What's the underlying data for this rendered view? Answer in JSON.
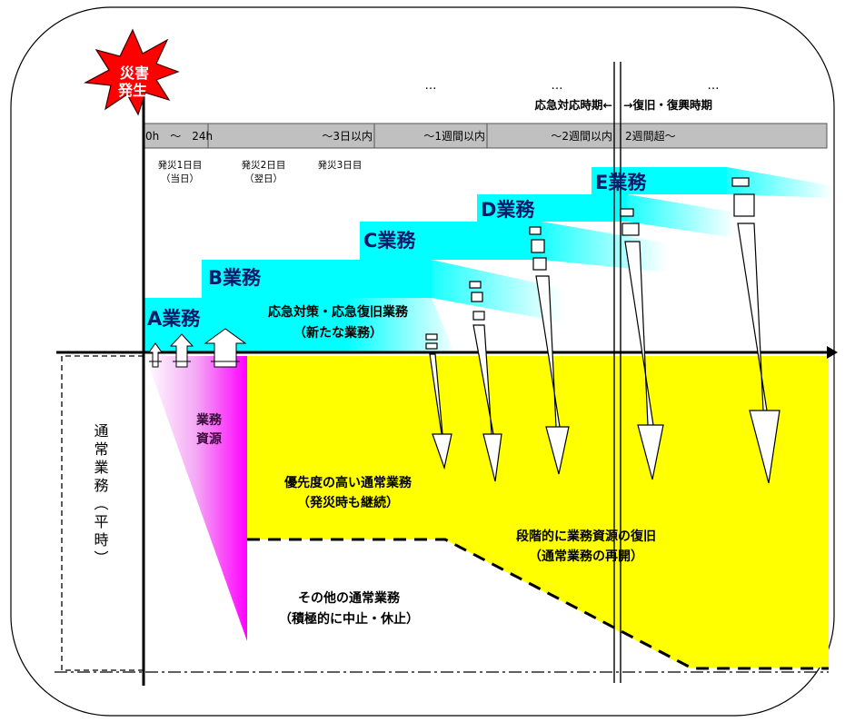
{
  "burst_label_lines": [
    "災害",
    "発生"
  ],
  "ellipsis": "…",
  "phase_labels": {
    "response": "応急対応時期←",
    "recovery": "→復旧・復興時期"
  },
  "timeline": [
    "0h　～　24h",
    "～3日以内",
    "～1週間以内",
    "～2週間以内",
    "2週間超～"
  ],
  "days": [
    {
      "lines": [
        "発災1日目",
        "（当日）"
      ]
    },
    {
      "lines": [
        "発災2日目",
        "（翌日）"
      ]
    },
    {
      "lines": [
        "発災3日目"
      ]
    }
  ],
  "tasks": [
    "A業務",
    "B業務",
    "C業務",
    "D業務",
    "E業務"
  ],
  "emergency_lines": [
    "応急対策・応急復旧業務",
    "（新たな業務）"
  ],
  "resources_lines": [
    "業務",
    "資源"
  ],
  "normal_vertical": "通常業務（平時）",
  "priority_lines": [
    "優先度の高い通常業務",
    "（発災時も継続）"
  ],
  "restore_lines": [
    "段階的に業務資源の復旧",
    "（通常業務の再開）"
  ],
  "other_lines": [
    "その他の通常業務",
    "（積極的に中止・休止）"
  ],
  "colors": {
    "cyan": "#00ffff",
    "yellow": "#ffff00",
    "magenta": "#ff00ff",
    "burst": "#ff0000",
    "bar": "#c0c0c0"
  }
}
